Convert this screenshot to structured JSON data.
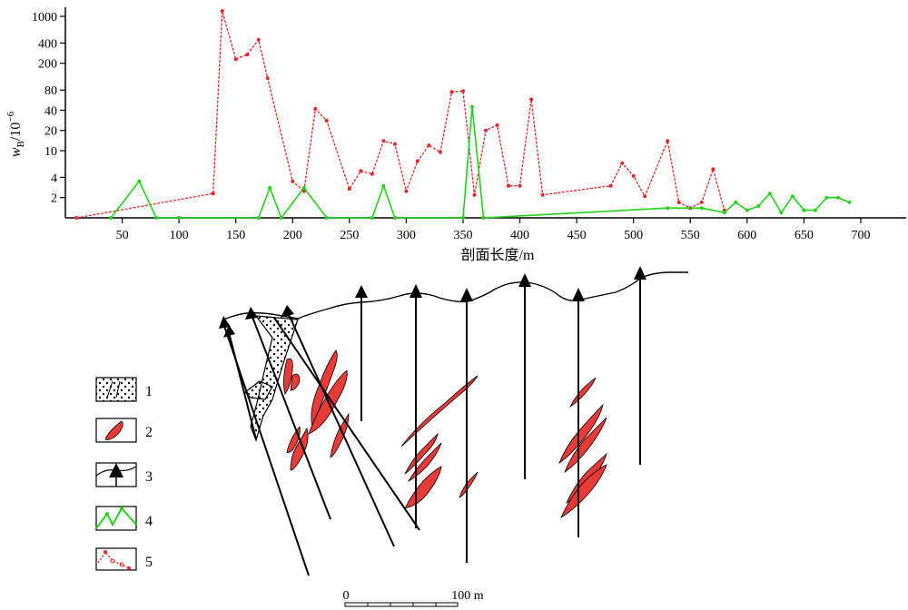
{
  "chart_data": {
    "type": "line",
    "xlabel": "剖面长度/m",
    "ylabel_main": "w",
    "ylabel_sub": "B",
    "ylabel_unit": "/10",
    "ylabel_exp": "−6",
    "y_scale": "log",
    "xlim": [
      0,
      740
    ],
    "ylim": [
      1,
      1000
    ],
    "x_ticks": [
      "50",
      "100",
      "150",
      "200",
      "250",
      "300",
      "350",
      "400",
      "450",
      "500",
      "550",
      "600",
      "650",
      "700"
    ],
    "y_ticks": [
      "1000",
      "400",
      "200",
      "80",
      "40",
      "20",
      "10",
      "4",
      "2"
    ],
    "grid": false,
    "series": [
      {
        "legend_number": "5",
        "color": "#e8262a",
        "points": [
          [
            10,
            1
          ],
          [
            130,
            2.3
          ],
          [
            138,
            1200
          ],
          [
            150,
            230
          ],
          [
            160,
            270
          ],
          [
            170,
            450
          ],
          [
            178,
            120
          ],
          [
            200,
            3.5
          ],
          [
            210,
            2.5
          ],
          [
            220,
            42
          ],
          [
            230,
            28
          ],
          [
            250,
            2.7
          ],
          [
            260,
            5
          ],
          [
            270,
            4.5
          ],
          [
            280,
            14
          ],
          [
            290,
            12.5
          ],
          [
            300,
            2.5
          ],
          [
            310,
            7
          ],
          [
            320,
            12
          ],
          [
            330,
            9.5
          ],
          [
            340,
            75
          ],
          [
            350,
            77
          ],
          [
            360,
            2.2
          ],
          [
            370,
            20
          ],
          [
            380,
            24
          ],
          [
            390,
            3
          ],
          [
            400,
            3
          ],
          [
            410,
            58
          ],
          [
            420,
            2.2
          ],
          [
            480,
            3
          ],
          [
            490,
            6.5
          ],
          [
            500,
            4.2
          ],
          [
            510,
            2.1
          ],
          [
            530,
            14
          ],
          [
            540,
            1.7
          ],
          [
            550,
            1.4
          ],
          [
            560,
            1.7
          ],
          [
            570,
            5.3
          ],
          [
            580,
            1.3
          ]
        ]
      },
      {
        "legend_number": "4",
        "color": "#22d418",
        "points": [
          [
            40,
            1
          ],
          [
            65,
            3.5
          ],
          [
            80,
            1
          ],
          [
            100,
            1
          ],
          [
            170,
            1
          ],
          [
            180,
            2.8
          ],
          [
            190,
            1
          ],
          [
            210,
            2.8
          ],
          [
            230,
            1
          ],
          [
            270,
            1
          ],
          [
            280,
            3
          ],
          [
            290,
            1
          ],
          [
            350,
            1
          ],
          [
            358,
            45
          ],
          [
            368,
            1
          ],
          [
            530,
            1.4
          ],
          [
            560,
            1.4
          ],
          [
            580,
            1.2
          ],
          [
            590,
            1.7
          ],
          [
            600,
            1.3
          ],
          [
            610,
            1.5
          ],
          [
            620,
            2.3
          ],
          [
            630,
            1.2
          ],
          [
            640,
            2.1
          ],
          [
            650,
            1.3
          ],
          [
            660,
            1.3
          ],
          [
            670,
            2
          ],
          [
            680,
            2
          ],
          [
            690,
            1.7
          ]
        ]
      }
    ]
  },
  "legend": [
    {
      "number": "1",
      "icon": "breccia-dots-icon"
    },
    {
      "number": "2",
      "icon": "red-orebody-lens-icon"
    },
    {
      "number": "3",
      "icon": "drillhole-arrow-surface-icon"
    },
    {
      "number": "4",
      "icon": "green-series-line-icon"
    },
    {
      "number": "5",
      "icon": "red-series-line-icon"
    }
  ],
  "scale_bar": {
    "start_label": "0",
    "end_label": "100 m"
  },
  "colors": {
    "ore": "#e83a36",
    "series_red": "#e8262a",
    "series_green": "#22d418"
  }
}
